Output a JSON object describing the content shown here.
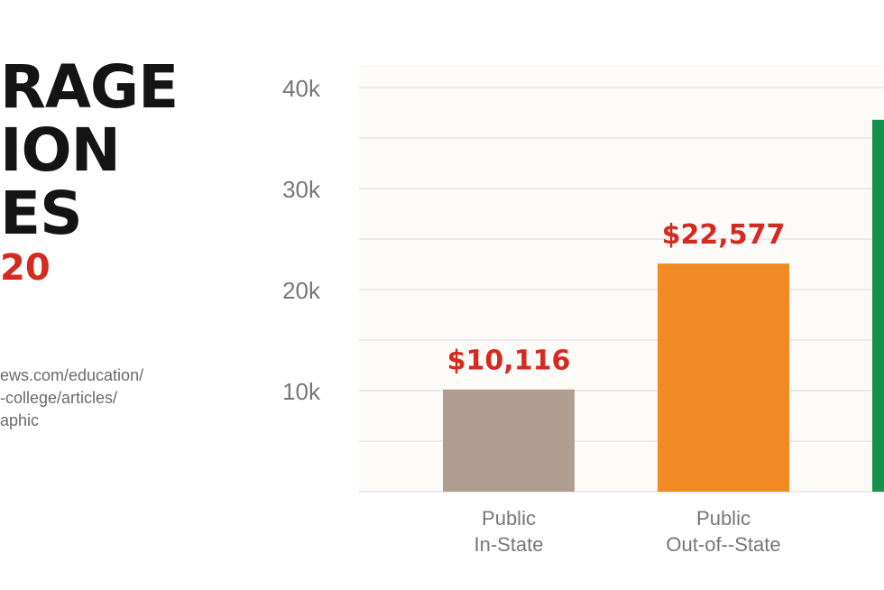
{
  "title": {
    "lines": [
      "RAGE",
      "ION",
      "ES"
    ],
    "year": "20"
  },
  "source": {
    "lines": [
      "ews.com/education/",
      "-college/articles/",
      "aphic"
    ]
  },
  "colors": {
    "title_text": "#141414",
    "accent_red": "#d42a1f",
    "gridline": "#e6e4ea",
    "plot_background": "#fcfbf8",
    "axis_text": "#777777"
  },
  "chart_data": {
    "type": "bar",
    "ylim": [
      0,
      42000
    ],
    "yticks": [
      10000,
      20000,
      30000,
      40000
    ],
    "ytick_labels": [
      "10k",
      "20k",
      "30k",
      "40k"
    ],
    "minor_gridlines": [
      5000,
      15000,
      25000,
      35000
    ],
    "grid": true,
    "bars": [
      {
        "category": [
          "Public",
          "In-State"
        ],
        "value": 10116,
        "label": "$10,116",
        "color": "#b09e92"
      },
      {
        "category": [
          "Public",
          "Out-of--State"
        ],
        "value": 22577,
        "label": "$22,577",
        "color": "#f08a24"
      },
      {
        "category": [
          "",
          ""
        ],
        "value": 36801,
        "label": "$",
        "color": "#14924c"
      }
    ]
  }
}
